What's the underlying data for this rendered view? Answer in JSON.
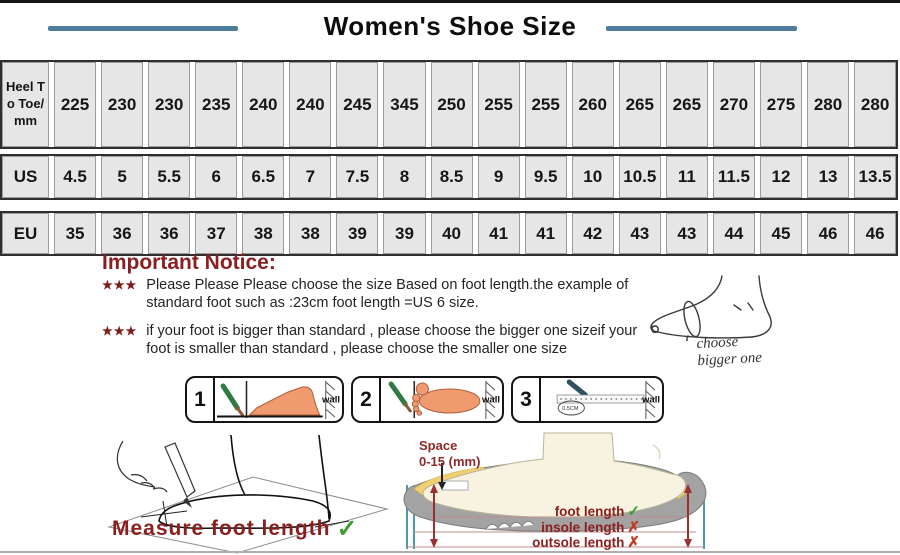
{
  "title": "Women's Shoe Size",
  "table": {
    "rows": [
      {
        "label": "Heel To Toe/mm",
        "values": [
          "225",
          "230",
          "230",
          "235",
          "240",
          "240",
          "245",
          "345",
          "250",
          "255",
          "255",
          "260",
          "265",
          "265",
          "270",
          "275",
          "280",
          "280"
        ]
      },
      {
        "label": "US",
        "values": [
          "4.5",
          "5",
          "5.5",
          "6",
          "6.5",
          "7",
          "7.5",
          "8",
          "8.5",
          "9",
          "9.5",
          "10",
          "10.5",
          "11",
          "11.5",
          "12",
          "13",
          "13.5"
        ]
      },
      {
        "label": "EU",
        "values": [
          "35",
          "36",
          "36",
          "37",
          "38",
          "38",
          "39",
          "39",
          "40",
          "41",
          "41",
          "42",
          "43",
          "43",
          "44",
          "45",
          "46",
          "46"
        ]
      }
    ]
  },
  "notice": {
    "heading": "Important Notice:",
    "bullet_marker": "★★★",
    "items": [
      "Please Please Please choose the size Based on foot length.the example of standard foot such as :23cm foot length =US 6 size.",
      "if your foot is bigger than standard , please choose the bigger one sizeif your foot is smaller than standard , please choose the smaller one size"
    ],
    "foot_sketch_caption": "choose bigger one"
  },
  "steps": {
    "wall_label": "wall",
    "items": [
      {
        "number": "1"
      },
      {
        "number": "2"
      },
      {
        "number": "3",
        "ruler_note": "0.5CM"
      }
    ]
  },
  "measure": {
    "caption": "Measure foot length",
    "check_mark": "✓"
  },
  "shoe_diagram": {
    "space_label_line1": "Space",
    "space_label_line2": "0-15 (mm)",
    "measurements": [
      {
        "label": "foot length",
        "mark": "✓",
        "ok": true
      },
      {
        "label": "insole length",
        "mark": "✗",
        "ok": false
      },
      {
        "label": "outsole length",
        "mark": "✗",
        "ok": false
      }
    ]
  },
  "colors": {
    "accent_line": "#4d7c9c",
    "notice_red": "#8b1e1e",
    "check_green": "#3f9c35",
    "cross_red": "#c23b22",
    "cell_bg": "#e6e6e6"
  },
  "chart_data": {
    "type": "table",
    "title": "Women's Shoe Size",
    "row_headers": [
      "Heel To Toe/mm",
      "US",
      "EU"
    ],
    "rows": [
      [
        225,
        230,
        230,
        235,
        240,
        240,
        245,
        345,
        250,
        255,
        255,
        260,
        265,
        265,
        270,
        275,
        280,
        280
      ],
      [
        4.5,
        5,
        5.5,
        6,
        6.5,
        7,
        7.5,
        8,
        8.5,
        9,
        9.5,
        10,
        10.5,
        11,
        11.5,
        12,
        13,
        13.5
      ],
      [
        35,
        36,
        36,
        37,
        38,
        38,
        39,
        39,
        40,
        41,
        41,
        42,
        43,
        43,
        44,
        45,
        46,
        46
      ]
    ]
  }
}
